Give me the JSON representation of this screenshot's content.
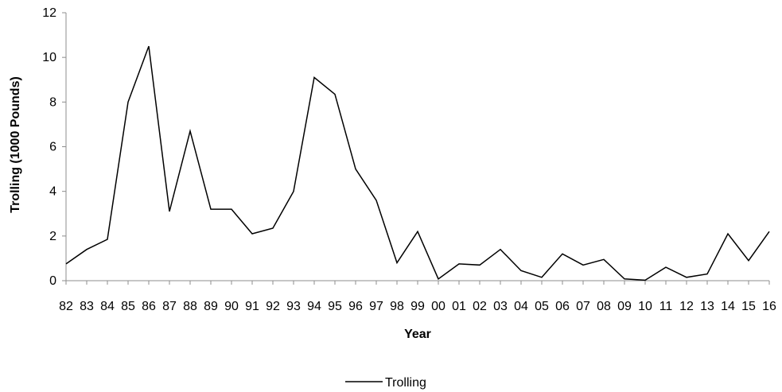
{
  "chart_data": {
    "type": "line",
    "title": "",
    "xlabel": "Year",
    "ylabel": "Trolling (1000 Pounds)",
    "ylim": [
      0,
      12
    ],
    "yticks": [
      "0",
      "2",
      "4",
      "6",
      "8",
      "10",
      "12"
    ],
    "grid": false,
    "legend_position": "bottom",
    "categories": [
      "82",
      "83",
      "84",
      "85",
      "86",
      "87",
      "88",
      "89",
      "90",
      "91",
      "92",
      "93",
      "94",
      "95",
      "96",
      "97",
      "98",
      "99",
      "00",
      "01",
      "02",
      "03",
      "04",
      "05",
      "06",
      "07",
      "08",
      "09",
      "10",
      "11",
      "12",
      "13",
      "14",
      "15",
      "16"
    ],
    "series": [
      {
        "name": "Trolling",
        "color": "#000000",
        "values": [
          0.75,
          1.4,
          1.85,
          8.0,
          10.5,
          3.1,
          6.7,
          3.2,
          3.2,
          2.1,
          2.35,
          4.0,
          9.1,
          8.35,
          5.0,
          3.6,
          0.8,
          2.2,
          0.08,
          0.75,
          0.7,
          1.4,
          0.45,
          0.15,
          1.2,
          0.7,
          0.95,
          0.08,
          0.02,
          0.6,
          0.15,
          0.3,
          2.1,
          0.9,
          2.2
        ]
      }
    ]
  }
}
